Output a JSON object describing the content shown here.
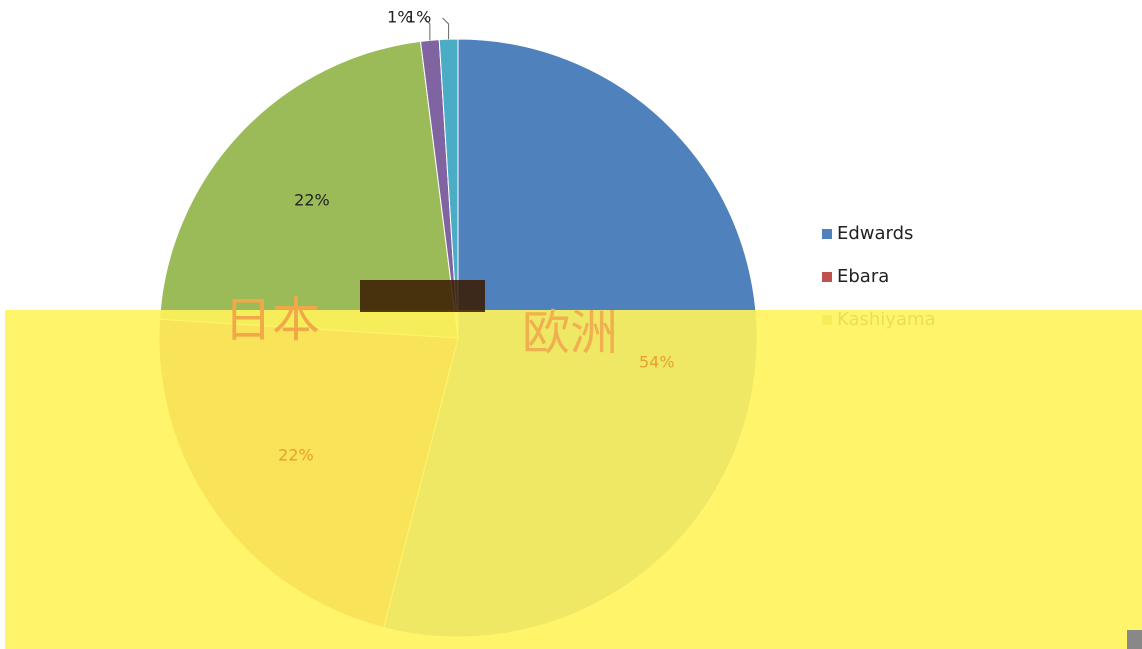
{
  "chart_data": {
    "type": "pie",
    "categories": [
      "Edwards",
      "Ebara",
      "Kashiyama",
      null,
      null
    ],
    "values": [
      54,
      22,
      22,
      1,
      1
    ],
    "value_labels": [
      "54%",
      "22%",
      "22%",
      "1%",
      "1%"
    ],
    "colors": [
      "#4f81bd",
      "#c0504d",
      "#9bbb59",
      "#8064a2",
      "#4bacc6"
    ],
    "legend": "right"
  },
  "overlay": {
    "labels": [
      "日本",
      "欧洲"
    ]
  }
}
